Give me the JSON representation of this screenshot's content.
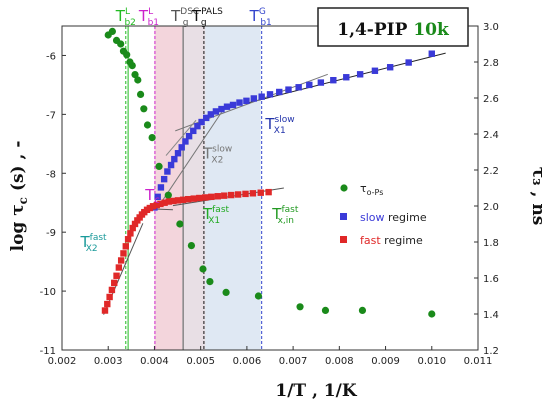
{
  "chart_data": {
    "type": "scatter",
    "title_main": "1,4-PIP",
    "title_accent": "10k",
    "xlabel": "1/T , 1/K",
    "ylabel_left_main": "log τ",
    "ylabel_left_sub": "c",
    "ylabel_left_tail": " (s) , -",
    "ylabel_right": "τ₃ , ns",
    "xlim": [
      0.002,
      0.011
    ],
    "ylim_left": [
      -11,
      -5.5
    ],
    "ylim_right": [
      1.2,
      3.0
    ],
    "x_ticks": [
      "0.002",
      "0.003",
      "0.004",
      "0.005",
      "0.006",
      "0.007",
      "0.008",
      "0.009",
      "0.010",
      "0.011"
    ],
    "y_left_ticks": [
      "-6",
      "-7",
      "-8",
      "-9",
      "-10",
      "-11"
    ],
    "y_right_ticks": [
      "1.2",
      "1.4",
      "1.6",
      "1.8",
      "2.0",
      "2.2",
      "2.4",
      "2.6",
      "2.8",
      "3.0"
    ],
    "regions": [
      {
        "from": 0.004,
        "to": 0.0046,
        "color": "#e9b3c0",
        "opacity": 0.55
      },
      {
        "from": 0.0046,
        "to": 0.0051,
        "color": "#d8cad3",
        "opacity": 0.6
      },
      {
        "from": 0.0051,
        "to": 0.0063,
        "color": "#c4d5ea",
        "opacity": 0.55
      }
    ],
    "vlines": [
      {
        "x": 0.00338,
        "color": "#22bb22",
        "dash": "3,2",
        "label": "T",
        "sup": "L",
        "sub": "b2"
      },
      {
        "x": 0.00343,
        "color": "#22bb22",
        "dash": ""
      },
      {
        "x": 0.00401,
        "color": "#cc22cc",
        "dash": "3,2",
        "label": "T",
        "sup": "L",
        "sub": "b1"
      },
      {
        "x": 0.00462,
        "color": "#555555",
        "dash": "",
        "label": "T",
        "sup": "DSC",
        "sub": "g"
      },
      {
        "x": 0.00507,
        "color": "#111111",
        "dash": "3,2",
        "label": "T",
        "sup": "PALS",
        "sub": "g"
      },
      {
        "x": 0.00632,
        "color": "#3344cc",
        "dash": "3,2",
        "label": "T",
        "sup": "G",
        "sub": "b1"
      }
    ],
    "series": [
      {
        "name": "τ",
        "name_sub": "o-Ps",
        "axis": "right",
        "marker": "circle",
        "color": "#1a8a1a",
        "x": [
          0.003,
          0.00309,
          0.00318,
          0.00327,
          0.00333,
          0.0034,
          0.00347,
          0.00352,
          0.00358,
          0.00364,
          0.0037,
          0.00377,
          0.00385,
          0.00395,
          0.0041,
          0.0043,
          0.00455,
          0.0048,
          0.00505,
          0.0052,
          0.00555,
          0.00625,
          0.00715,
          0.0077,
          0.0085,
          0.01
        ],
        "y": [
          2.95,
          2.97,
          2.92,
          2.9,
          2.86,
          2.84,
          2.8,
          2.78,
          2.73,
          2.7,
          2.62,
          2.54,
          2.45,
          2.38,
          2.22,
          2.06,
          1.9,
          1.78,
          1.65,
          1.58,
          1.52,
          1.5,
          1.44,
          1.42,
          1.42,
          1.4
        ]
      },
      {
        "name": "slow regime",
        "axis": "left",
        "marker": "square",
        "color": "#3a3ad8",
        "x": [
          0.004,
          0.00407,
          0.00414,
          0.00421,
          0.00428,
          0.00436,
          0.00443,
          0.00451,
          0.00459,
          0.00467,
          0.00475,
          0.00484,
          0.00493,
          0.00502,
          0.00512,
          0.00522,
          0.00533,
          0.00545,
          0.00557,
          0.0057,
          0.00584,
          0.00599,
          0.00615,
          0.00632,
          0.0065,
          0.0067,
          0.0069,
          0.00712,
          0.00735,
          0.0076,
          0.00787,
          0.00815,
          0.00845,
          0.00877,
          0.0091,
          0.0095,
          0.01
        ],
        "y": [
          -8.58,
          -8.4,
          -8.24,
          -8.1,
          -7.97,
          -7.86,
          -7.76,
          -7.66,
          -7.56,
          -7.46,
          -7.37,
          -7.28,
          -7.2,
          -7.13,
          -7.06,
          -7.0,
          -6.95,
          -6.91,
          -6.87,
          -6.84,
          -6.8,
          -6.77,
          -6.73,
          -6.7,
          -6.66,
          -6.62,
          -6.58,
          -6.54,
          -6.5,
          -6.46,
          -6.42,
          -6.37,
          -6.32,
          -6.26,
          -6.2,
          -6.12,
          -5.97
        ]
      },
      {
        "name": "fast regime",
        "axis": "left",
        "marker": "square",
        "color": "#e02828",
        "x": [
          0.00293,
          0.00298,
          0.00303,
          0.00308,
          0.00313,
          0.00318,
          0.00323,
          0.00328,
          0.00333,
          0.00338,
          0.00343,
          0.00348,
          0.00353,
          0.00358,
          0.00363,
          0.00368,
          0.00373,
          0.00378,
          0.00384,
          0.0039,
          0.00397,
          0.00405,
          0.00413,
          0.00422,
          0.00431,
          0.00441,
          0.00451,
          0.00462,
          0.00473,
          0.00485,
          0.00497,
          0.0051,
          0.00523,
          0.00537,
          0.00551,
          0.00566,
          0.00581,
          0.00597,
          0.00613,
          0.0063,
          0.00647
        ],
        "y": [
          -10.33,
          -10.22,
          -10.1,
          -9.98,
          -9.86,
          -9.74,
          -9.6,
          -9.48,
          -9.36,
          -9.24,
          -9.12,
          -9.02,
          -8.93,
          -8.86,
          -8.8,
          -8.75,
          -8.7,
          -8.66,
          -8.62,
          -8.59,
          -8.56,
          -8.54,
          -8.52,
          -8.5,
          -8.48,
          -8.47,
          -8.46,
          -8.45,
          -8.44,
          -8.43,
          -8.42,
          -8.41,
          -8.4,
          -8.39,
          -8.38,
          -8.37,
          -8.36,
          -8.35,
          -8.34,
          -8.33,
          -8.32
        ]
      }
    ],
    "fit_lines": [
      {
        "x": [
          0.00605,
          0.0103
        ],
        "y": [
          -6.8,
          -5.96
        ],
        "color": "#222222"
      },
      {
        "x": [
          0.00445,
          0.00775
        ],
        "y": [
          -7.28,
          -6.32
        ],
        "color": "#777777"
      },
      {
        "x": [
          0.0041,
          0.00555
        ],
        "y": [
          -8.55,
          -6.85
        ],
        "color": "#777777"
      },
      {
        "x": [
          0.0044,
          0.0068
        ],
        "y": [
          -8.55,
          -8.25
        ],
        "color": "#555555"
      },
      {
        "x": [
          0.0038,
          0.0044
        ],
        "y": [
          -8.6,
          -8.62
        ],
        "color": "#555555"
      },
      {
        "x": [
          0.0029,
          0.00375
        ],
        "y": [
          -10.4,
          -8.85
        ],
        "color": "#555555"
      },
      {
        "x": [
          0.00425,
          0.0049
        ],
        "y": [
          -7.7,
          -7.1
        ],
        "color": "#888888"
      }
    ],
    "annotations": [
      {
        "label": "T",
        "sup": "slow",
        "sub": "X1",
        "x": 0.0064,
        "y": -7.25,
        "color": "#2233aa"
      },
      {
        "label": "T",
        "sup": "slow",
        "sub": "X2",
        "x": 0.00505,
        "y": -7.75,
        "color": "#777777"
      },
      {
        "label": "T",
        "sup": "fast",
        "sub": "X1",
        "x": 0.00505,
        "y": -8.78,
        "color": "#22aa22"
      },
      {
        "label": "T",
        "sup": "fast",
        "sub": "x,in",
        "x": 0.00655,
        "y": -8.78,
        "color": "#229922"
      },
      {
        "label": "T",
        "sup": "fast",
        "sub": "X2",
        "x": 0.0024,
        "y": -9.25,
        "color": "#1a9a9a"
      },
      {
        "label": "T",
        "sup": "",
        "sub": "c",
        "x": 0.0038,
        "y": -8.45,
        "color": "#cc22cc"
      }
    ],
    "legend_position": "center-right"
  }
}
